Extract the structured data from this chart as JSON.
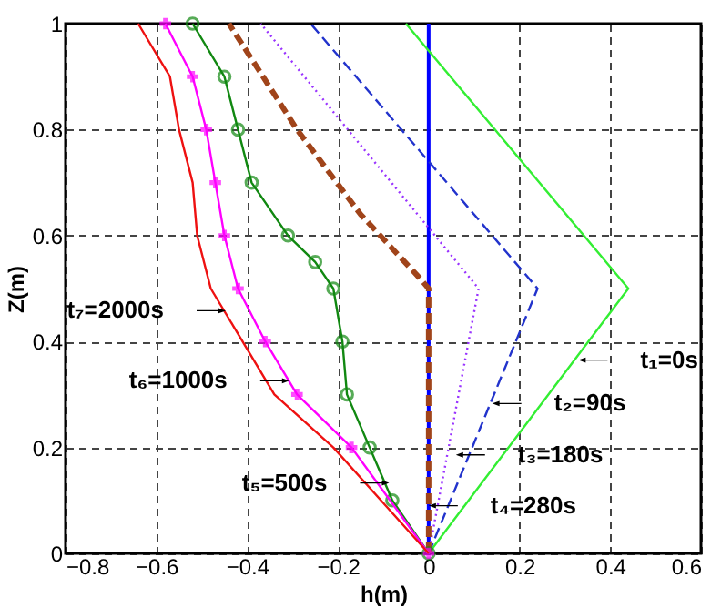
{
  "chart_data": {
    "type": "line",
    "xlabel": "h(m)",
    "ylabel": "Z(m)",
    "xlim": [
      -0.8,
      0.6
    ],
    "ylim": [
      0,
      1
    ],
    "xticks": [
      -0.8,
      -0.6,
      -0.4,
      -0.2,
      {
        "value": 0,
        "label": "0"
      },
      0.2,
      0.4,
      0.6
    ],
    "yticks": [
      {
        "value": 0,
        "label": "0"
      },
      0.2,
      0.4,
      0.6,
      0.8,
      {
        "value": 1,
        "label": "1"
      }
    ],
    "grid": true,
    "ref_lines": [
      {
        "axis": "x",
        "value": 0,
        "color": "#0000ff",
        "line_style": "solid"
      }
    ],
    "series": [
      {
        "color": "#33ee33",
        "line_style": "solid",
        "marker": "none",
        "x": [
          0,
          0.44,
          -0.05
        ],
        "values": [
          0,
          0.5,
          1
        ]
      },
      {
        "color": "#2233cc",
        "line_style": "dashed",
        "marker": "none",
        "x": [
          0,
          0.24,
          -0.26
        ],
        "values": [
          0,
          0.5,
          1
        ]
      },
      {
        "color": "#9933ff",
        "line_style": "dotted",
        "marker": "none",
        "x": [
          0,
          0.11,
          -0.37
        ],
        "values": [
          0,
          0.5,
          1
        ]
      },
      {
        "color": "#a0441a",
        "line_style": "dashed",
        "marker": "none",
        "x": [
          0,
          0,
          -0.02,
          -0.15,
          -0.29,
          -0.44
        ],
        "values": [
          0,
          0.5,
          0.52,
          0.64,
          0.8,
          1
        ]
      },
      {
        "color": "#118811",
        "line_style": "solid",
        "marker": "circle",
        "x": [
          0,
          -0.08,
          -0.13,
          -0.18,
          -0.19,
          -0.21,
          -0.25,
          -0.31,
          -0.39,
          -0.42,
          -0.45,
          -0.52
        ],
        "values": [
          0,
          0.1,
          0.2,
          0.3,
          0.4,
          0.5,
          0.55,
          0.6,
          0.7,
          0.8,
          0.9,
          1
        ]
      },
      {
        "color": "#ff00ff",
        "line_style": "solid",
        "marker": "cross",
        "x": [
          0,
          -0.17,
          -0.29,
          -0.36,
          -0.42,
          -0.45,
          -0.47,
          -0.49,
          -0.52,
          -0.58
        ],
        "values": [
          0,
          0.2,
          0.3,
          0.4,
          0.5,
          0.6,
          0.7,
          0.8,
          0.9,
          1
        ]
      },
      {
        "color": "#ee1111",
        "line_style": "solid",
        "marker": "none",
        "x": [
          0,
          -0.21,
          -0.34,
          -0.41,
          -0.48,
          -0.51,
          -0.52,
          -0.55,
          -0.57,
          -0.64
        ],
        "values": [
          0,
          0.2,
          0.3,
          0.4,
          0.5,
          0.6,
          0.7,
          0.8,
          0.9,
          1
        ]
      }
    ],
    "annotations": [
      {
        "text": "t₁=0s",
        "x": 0.33,
        "y": 0.365
      },
      {
        "text": "t₂=90s",
        "x": 0.14,
        "y": 0.283
      },
      {
        "text": "t₃=180s",
        "x": 0.06,
        "y": 0.186
      },
      {
        "text": "t₄=280s",
        "x": 0.0,
        "y": 0.09
      },
      {
        "text": "t₅=500s",
        "x": -0.087,
        "y": 0.133
      },
      {
        "text": "t₆=1000s",
        "x": -0.307,
        "y": 0.326
      },
      {
        "text": "t₇=2000s",
        "x": -0.447,
        "y": 0.458
      }
    ]
  }
}
